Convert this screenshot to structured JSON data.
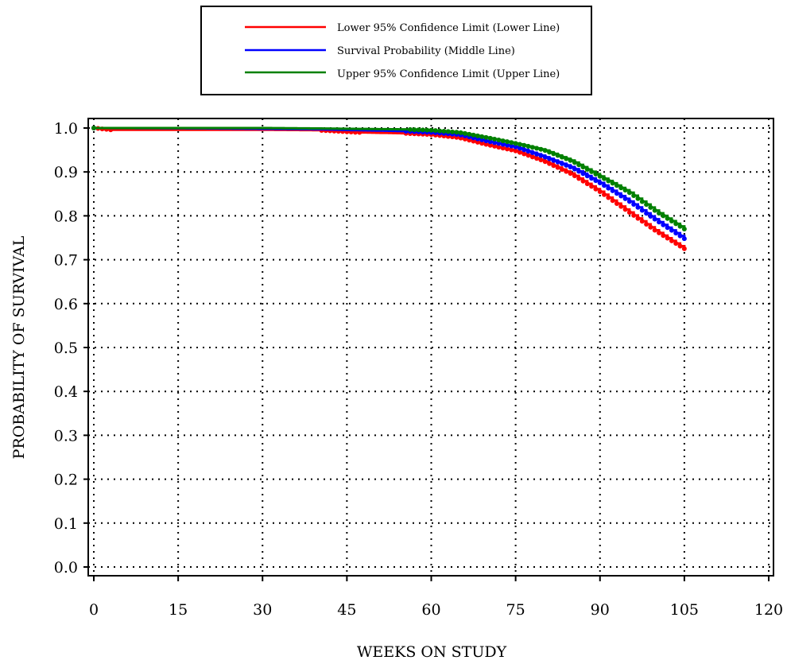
{
  "chart_data": {
    "type": "line",
    "xlabel": "WEEKS ON STUDY",
    "ylabel": "PROBABILITY OF SURVIVAL",
    "xlim": [
      0,
      120
    ],
    "ylim": [
      0,
      1
    ],
    "xticks": [
      0,
      15,
      30,
      45,
      60,
      75,
      90,
      105,
      120
    ],
    "yticks": [
      0.0,
      0.1,
      0.2,
      0.3,
      0.4,
      0.5,
      0.6,
      0.7,
      0.8,
      0.9,
      1.0
    ],
    "ytick_labels": [
      "0.0",
      "0.1",
      "0.2",
      "0.3",
      "0.4",
      "0.5",
      "0.6",
      "0.7",
      "0.8",
      "0.9",
      "1.0"
    ],
    "grid": true,
    "legend_position": "top-center",
    "series": [
      {
        "name": "Lower 95% Confidence Limit (Lower Line)",
        "color": "#ff0000",
        "x": [
          0,
          3,
          20,
          30,
          40,
          47,
          55,
          60,
          65,
          70,
          75,
          80,
          85,
          90,
          95,
          100,
          105
        ],
        "y": [
          1.0,
          0.996,
          0.996,
          0.996,
          0.995,
          0.99,
          0.988,
          0.985,
          0.978,
          0.962,
          0.948,
          0.925,
          0.895,
          0.855,
          0.81,
          0.765,
          0.725
        ]
      },
      {
        "name": "Survival Probability (Middle Line)",
        "color": "#0000ff",
        "x": [
          0,
          20,
          30,
          40,
          47,
          55,
          60,
          65,
          70,
          75,
          80,
          85,
          90,
          95,
          100,
          105
        ],
        "y": [
          1.0,
          0.999,
          0.998,
          0.997,
          0.995,
          0.993,
          0.99,
          0.985,
          0.97,
          0.957,
          0.935,
          0.91,
          0.875,
          0.835,
          0.79,
          0.748
        ]
      },
      {
        "name": "Upper 95% Confidence Limit (Upper Line)",
        "color": "#008000",
        "x": [
          0,
          20,
          30,
          40,
          47,
          55,
          60,
          65,
          70,
          75,
          80,
          85,
          90,
          95,
          100,
          105
        ],
        "y": [
          1.0,
          1.0,
          1.0,
          0.999,
          0.998,
          0.997,
          0.995,
          0.99,
          0.978,
          0.965,
          0.95,
          0.925,
          0.89,
          0.855,
          0.81,
          0.77
        ]
      }
    ]
  }
}
